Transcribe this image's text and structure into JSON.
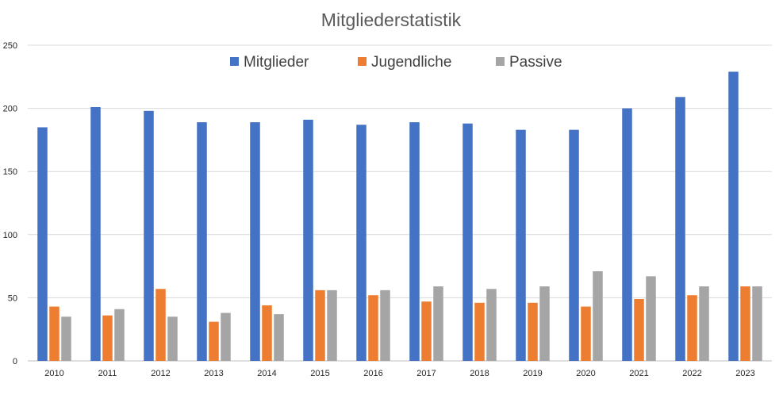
{
  "chart_data": {
    "type": "bar",
    "title": "Mitgliederstatistik",
    "xlabel": "",
    "ylabel": "",
    "ylim": [
      0,
      250
    ],
    "yticks": [
      0,
      50,
      100,
      150,
      200,
      250
    ],
    "grid": true,
    "legend_position": "top",
    "categories": [
      "2010",
      "2011",
      "2012",
      "2013",
      "2014",
      "2015",
      "2016",
      "2017",
      "2018",
      "2019",
      "2020",
      "2021",
      "2022",
      "2023"
    ],
    "series": [
      {
        "name": "Mitglieder",
        "color": "#4472C4",
        "values": [
          185,
          201,
          198,
          189,
          189,
          191,
          187,
          189,
          188,
          183,
          183,
          200,
          209,
          229
        ]
      },
      {
        "name": "Jugendliche",
        "color": "#ED7D31",
        "values": [
          43,
          36,
          57,
          31,
          44,
          56,
          52,
          47,
          46,
          46,
          43,
          49,
          52,
          59
        ]
      },
      {
        "name": "Passive",
        "color": "#A5A5A5",
        "values": [
          35,
          41,
          35,
          38,
          37,
          56,
          56,
          59,
          57,
          59,
          71,
          67,
          59,
          59
        ]
      }
    ]
  }
}
